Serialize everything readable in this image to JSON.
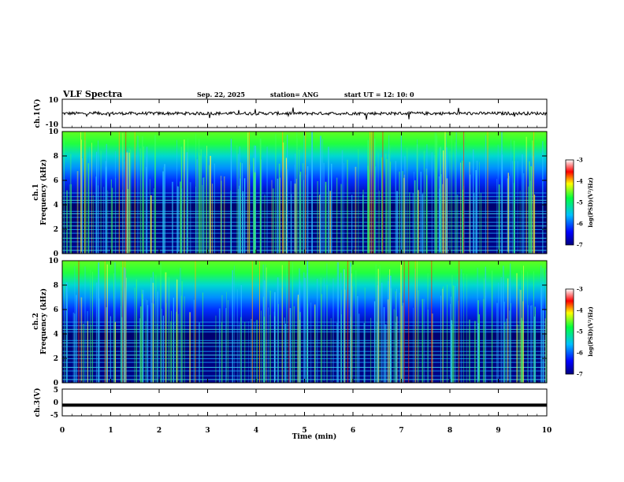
{
  "header": {
    "title": "VLF Spectra",
    "date": "Sep. 22, 2025",
    "station": "station= ANG",
    "start": "start  UT =   12: 10: 0"
  },
  "chart_data": [
    {
      "type": "line",
      "ylabel": "ch.1(V)",
      "ylim": [
        -10,
        10
      ],
      "ytick_labels": [
        "10",
        "-10"
      ],
      "xlim": [
        0,
        10
      ],
      "baseline": 0
    },
    {
      "type": "heatmap",
      "ylabel_line1": "ch.1",
      "ylabel_line2": "Frequency  (kHz)",
      "ylim": [
        0,
        10
      ],
      "ytick_labels": [
        "0",
        "2",
        "4",
        "6",
        "8",
        "10"
      ],
      "xlim": [
        0,
        10
      ],
      "colorbar": {
        "title": "log(PSD)(V²/Hz)",
        "range": [
          -7,
          -3
        ],
        "tick_labels": [
          "-3",
          "-4",
          "-5",
          "-6",
          "-7"
        ]
      }
    },
    {
      "type": "heatmap",
      "ylabel_line1": "ch.2",
      "ylabel_line2": "Frequency  (kHz)",
      "ylim": [
        0,
        10
      ],
      "ytick_labels": [
        "0",
        "2",
        "4",
        "6",
        "8",
        "10"
      ],
      "xlim": [
        0,
        10
      ],
      "colorbar": {
        "title": "log(PSD)(V²/Hz)",
        "range": [
          -7,
          -3
        ],
        "tick_labels": [
          "-3",
          "-4",
          "-5",
          "-6",
          "-7"
        ]
      }
    },
    {
      "type": "line",
      "ylabel": "ch.3(V)",
      "ylim": [
        -5,
        5
      ],
      "ytick_labels": [
        "5",
        "0",
        "-5"
      ],
      "xlim": [
        0,
        10
      ],
      "baseline": -1
    }
  ],
  "xaxis": {
    "label": "Time  (min)",
    "tick_labels": [
      "0",
      "1",
      "2",
      "3",
      "4",
      "5",
      "6",
      "7",
      "8",
      "9",
      "10"
    ]
  }
}
